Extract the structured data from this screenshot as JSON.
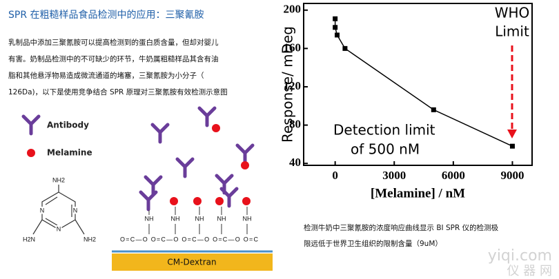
{
  "header": {
    "title": "SPR 在粗糙样品食品检测中的应用：三聚氰胺"
  },
  "paragraph": [
    "乳制品中添加三聚氰胺可以提高检测到的蛋白质含量，但却对婴儿",
    "有害。奶制品检测中的不可缺少的环节，牛奶属粗糙样品其含有油",
    "脂和其他悬浮物易造成微流通道的堵塞，三聚氰胺为小分子（",
    "126Da)，以下是使用竞争结合 SPR 原理对三聚氰胺有效检测示意图"
  ],
  "legend": {
    "antibody": "Antibody",
    "melamine": "Melamine"
  },
  "structure": {
    "amines": [
      "NH2",
      "H2N",
      "NH2"
    ],
    "ring_n": [
      "N",
      "N",
      "N"
    ]
  },
  "surface": {
    "linkers": [
      "NH",
      "NH",
      "NH",
      "NH",
      "NH"
    ],
    "ester_row": "O=C—O O=C—O O=C—O O=C—O O=C",
    "layer": "CM-Dextran"
  },
  "chart_data": {
    "type": "line",
    "x": [
      0,
      0,
      100,
      500,
      5000,
      9000
    ],
    "series": [
      {
        "name": "Response",
        "color": "#000000",
        "values": [
          191,
          182,
          174,
          160,
          96,
          58
        ]
      }
    ],
    "xlim": [
      -1600,
      10000
    ],
    "ylim": [
      38,
      207
    ],
    "xticks": [
      0,
      3000,
      6000,
      9000
    ],
    "yticks": [
      40,
      80,
      120,
      160,
      200
    ],
    "xlabel": "[Melamine] / nM",
    "ylabel": "Response/ mDeg",
    "annotations": [
      "Detection limit",
      "of 500 nM",
      "WHO",
      "Limit"
    ]
  },
  "caption": [
    "检测牛奶中三聚氰胺的浓度响应曲线显示 BI SPR 仪的检测极",
    "限远低于世界卫生组织的限制含量（9uM）"
  ],
  "watermark": [
    "yiqi.com",
    "仪 器 网"
  ]
}
